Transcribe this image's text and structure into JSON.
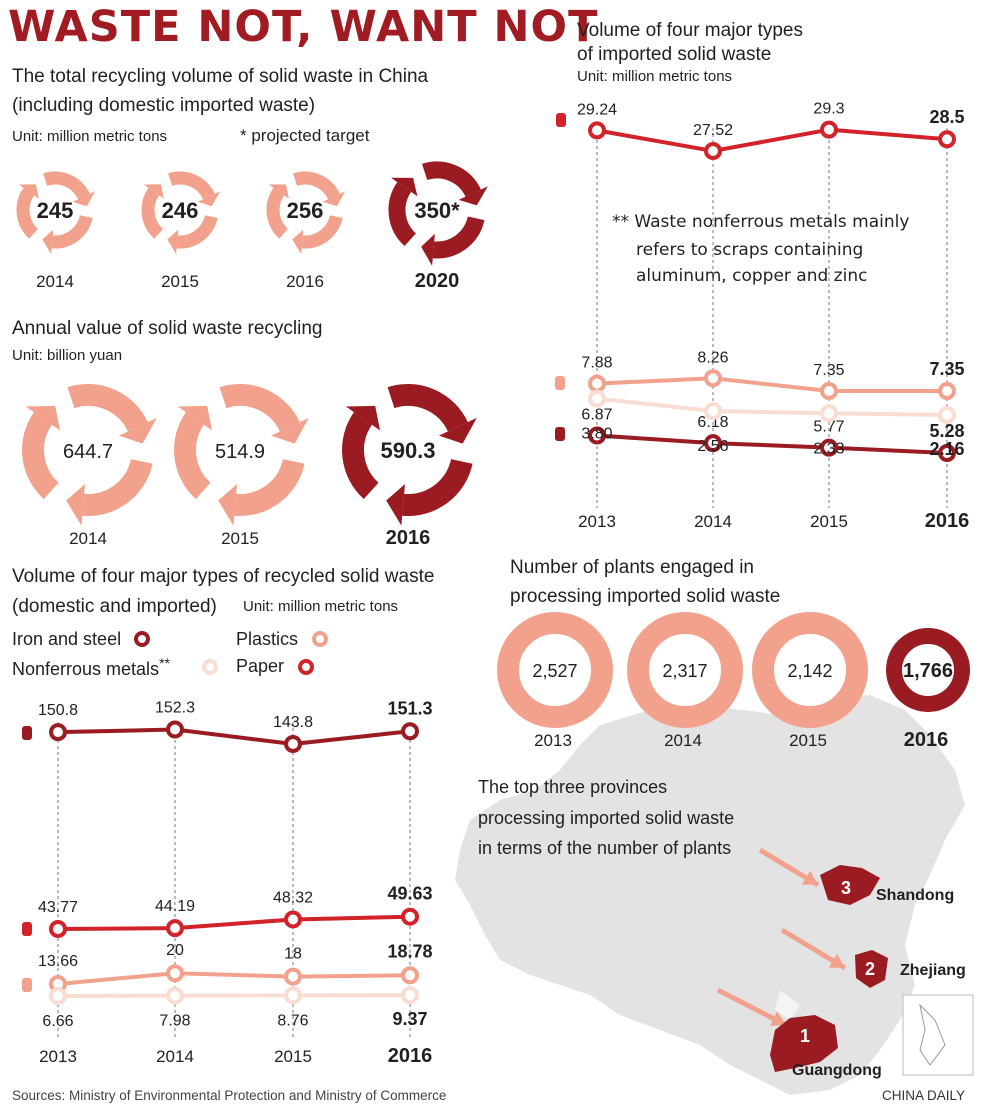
{
  "title": "WASTE NOT, WANT NOT",
  "colors": {
    "dark_red": "#9b1b22",
    "red": "#d2232a",
    "salmon": "#f2a28c",
    "pale": "#f9dcd2",
    "map_gray": "#e3e3e3"
  },
  "recycling_volume": {
    "heading_line1": "The total recycling volume of solid waste in China",
    "heading_line2": "(including domestic imported waste)",
    "unit": "Unit: million metric tons",
    "note": "* projected target",
    "items": [
      {
        "year": "2014",
        "value": "245"
      },
      {
        "year": "2015",
        "value": "246"
      },
      {
        "year": "2016",
        "value": "256"
      },
      {
        "year": "2020",
        "value": "350",
        "star": "*"
      }
    ]
  },
  "annual_value": {
    "heading": "Annual value of solid waste recycling",
    "unit": "Unit: billion yuan",
    "items": [
      {
        "year": "2014",
        "value": "644.7"
      },
      {
        "year": "2015",
        "value": "514.9"
      },
      {
        "year": "2016",
        "value": "590.3"
      }
    ]
  },
  "recycled_types": {
    "heading_line1": "Volume of four major types of recycled solid waste",
    "heading_line2": "(domestic and imported)",
    "unit": "Unit: million metric tons",
    "legend": {
      "iron": "Iron and steel",
      "plastics": "Plastics",
      "nonferrous": "Nonferrous metals",
      "nonferrous_mark": "**",
      "paper": "Paper"
    },
    "years": [
      "2013",
      "2014",
      "2015",
      "2016"
    ]
  },
  "imported_types": {
    "heading_line1": "Volume of four major types",
    "heading_line2": "of imported solid waste",
    "unit": "Unit: million metric tons",
    "footnote_line1": "** Waste nonferrous metals mainly",
    "footnote_line2": "refers to scraps containing",
    "footnote_line3": "aluminum, copper and zinc",
    "years": [
      "2013",
      "2014",
      "2015",
      "2016"
    ]
  },
  "plants": {
    "heading_line1": "Number of plants engaged in",
    "heading_line2": "processing imported solid waste",
    "items": [
      {
        "year": "2013",
        "value": "2,527"
      },
      {
        "year": "2014",
        "value": "2,317"
      },
      {
        "year": "2015",
        "value": "2,142"
      },
      {
        "year": "2016",
        "value": "1,766"
      }
    ]
  },
  "provinces": {
    "heading_line1": "The top three provinces",
    "heading_line2": "processing imported solid waste",
    "heading_line3": "in terms of the number of plants",
    "items": [
      {
        "rank": "3",
        "name": "Shandong"
      },
      {
        "rank": "2",
        "name": "Zhejiang"
      },
      {
        "rank": "1",
        "name": "Guangdong"
      }
    ]
  },
  "sources": "Sources: Ministry of Environmental Protection and Ministry of Commerce",
  "credit": "CHINA DAILY",
  "chart_data": [
    {
      "type": "line",
      "title": "Volume of four major types of recycled solid waste (domestic and imported)",
      "x": [
        "2013",
        "2014",
        "2015",
        "2016"
      ],
      "series": [
        {
          "name": "Iron and steel",
          "values": [
            150.8,
            152.3,
            143.8,
            151.3
          ],
          "labels": [
            "150.8",
            "152.3",
            "143.8",
            "151.3"
          ]
        },
        {
          "name": "Paper",
          "values": [
            43.77,
            44.19,
            48.32,
            49.63
          ],
          "labels": [
            "43.77",
            "44.19",
            "48.32",
            "49.63"
          ]
        },
        {
          "name": "Plastics",
          "values": [
            13.66,
            20,
            18,
            18.78
          ],
          "labels": [
            "13.66",
            "20",
            "18",
            "18.78"
          ]
        },
        {
          "name": "Nonferrous metals",
          "values": [
            6.66,
            7.98,
            8.76,
            9.37
          ],
          "labels": [
            "6.66",
            "7.98",
            "8.76",
            "9.37"
          ]
        }
      ]
    },
    {
      "type": "line",
      "title": "Volume of four major types of imported solid waste",
      "x": [
        "2013",
        "2014",
        "2015",
        "2016"
      ],
      "series": [
        {
          "name": "Paper",
          "values": [
            29.24,
            27.52,
            29.3,
            28.5
          ],
          "labels": [
            "29.24",
            "27.52",
            "29.3",
            "28.5"
          ]
        },
        {
          "name": "Plastics",
          "values": [
            7.88,
            8.26,
            7.35,
            7.35
          ],
          "labels": [
            "7.88",
            "8.26",
            "7.35",
            "7.35"
          ]
        },
        {
          "name": "Iron and steel",
          "values": [
            6.87,
            6.18,
            5.77,
            5.28
          ],
          "labels": [
            "6.87",
            "6.18",
            "5.77",
            "5.28"
          ]
        },
        {
          "name": "Nonferrous metals",
          "values": [
            3.8,
            2.56,
            2.33,
            2.16
          ],
          "labels": [
            "3.80",
            "2.56",
            "2.33",
            "2.16"
          ]
        }
      ]
    }
  ]
}
